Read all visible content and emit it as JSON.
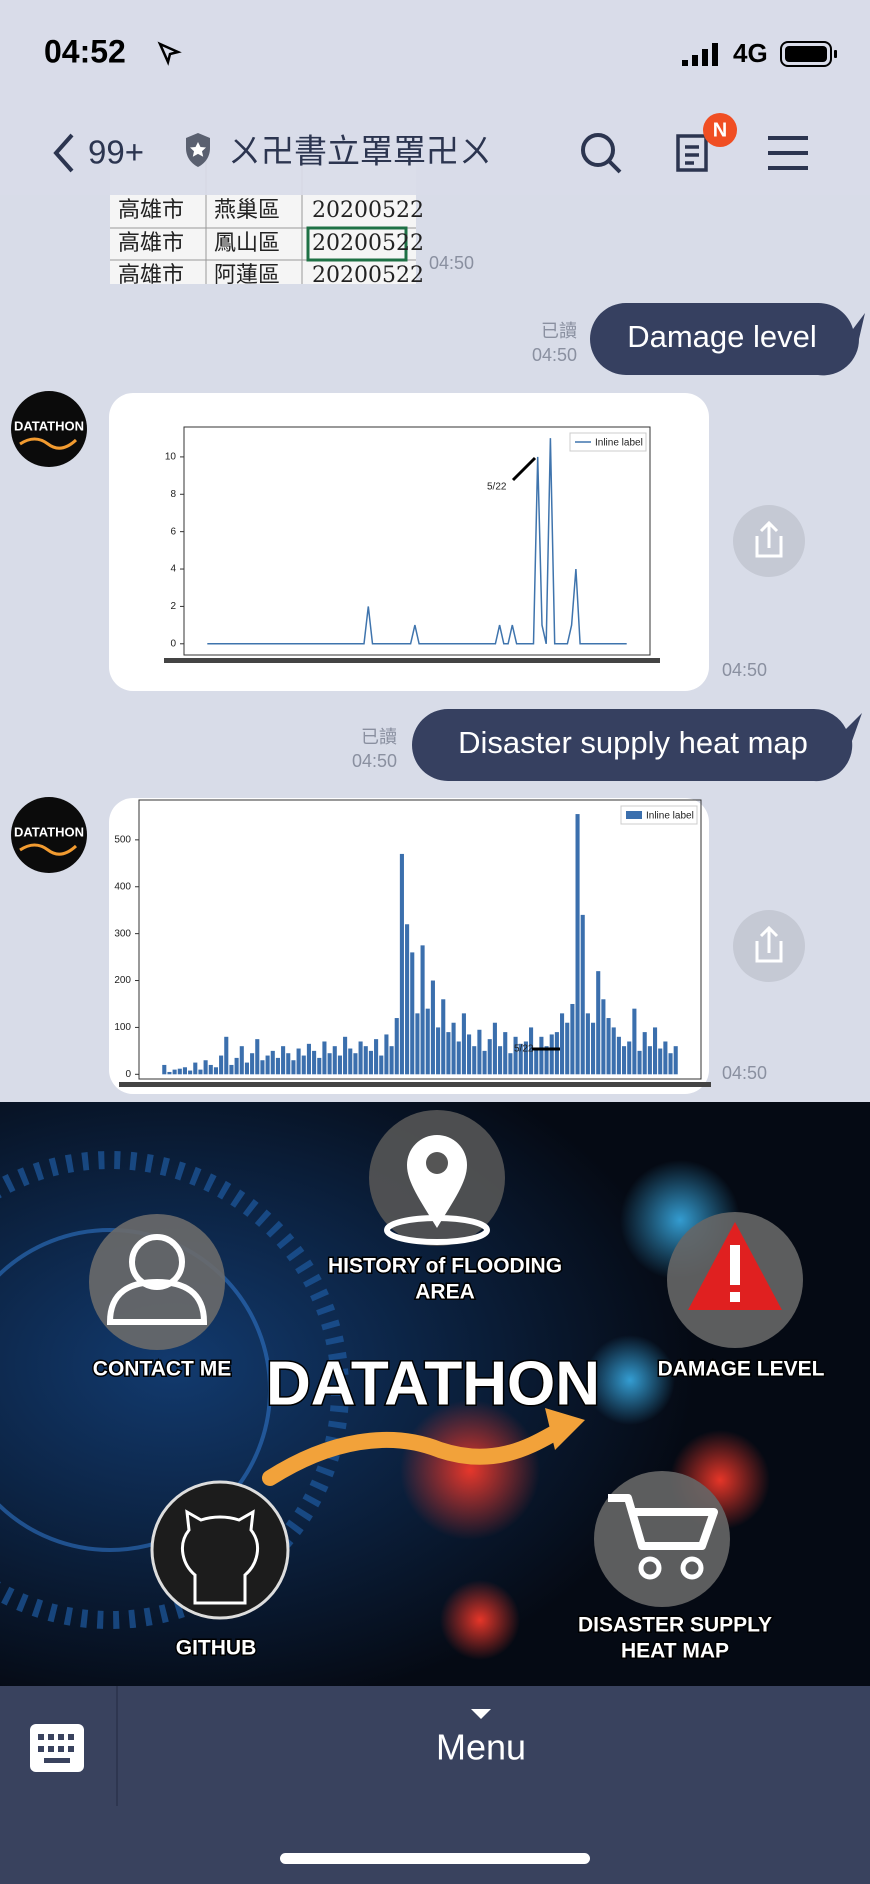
{
  "status_bar": {
    "time": "04:52",
    "network": "4G"
  },
  "header": {
    "back_count": "99+",
    "title": "ㄨ卍書立罩罩卍ㄨ",
    "badge": "N"
  },
  "image_message": {
    "table": [
      [
        "高雄市",
        "燕巢區",
        "20200522"
      ],
      [
        "高雄市",
        "鳳山區",
        "20200522"
      ],
      [
        "高雄市",
        "阿蓮區",
        "20200522"
      ]
    ],
    "time": "04:50"
  },
  "sent_messages": [
    {
      "text": "Damage level",
      "read": "已讀",
      "time": "04:50"
    },
    {
      "text": "Disaster supply heat map",
      "read": "已讀",
      "time": "04:50"
    }
  ],
  "chart_messages": [
    {
      "avatar": "DATATHON",
      "time": "04:50",
      "chart_data": {
        "type": "line",
        "annotation": "5/22",
        "legend": "upper right",
        "series": [
          {
            "name": "Inline label",
            "color": "#3f74ad",
            "values": [
              0,
              0,
              0,
              0,
              0,
              0,
              0,
              0,
              0,
              0,
              0,
              0,
              0,
              0,
              0,
              0,
              0,
              0,
              0,
              0,
              0,
              0,
              0,
              0,
              0,
              0,
              0,
              0,
              0,
              0,
              0,
              0,
              0,
              0,
              0,
              0,
              0,
              0,
              2,
              0,
              0,
              0,
              0,
              0,
              0,
              0,
              0,
              0,
              0,
              1,
              0,
              0,
              0,
              0,
              0,
              0,
              0,
              0,
              0,
              0,
              0,
              0,
              0,
              0,
              0,
              0,
              0,
              0,
              0,
              1,
              0,
              0,
              1,
              0,
              0,
              0,
              0,
              0,
              10,
              1,
              0,
              11,
              0,
              0,
              0,
              0,
              1,
              4,
              0,
              0,
              0,
              0,
              0,
              0,
              0,
              0,
              0,
              0,
              0,
              0
            ]
          }
        ],
        "ylim": [
          -0.6,
          11.6
        ],
        "yticks": [
          0,
          2,
          4,
          6,
          8,
          10
        ]
      }
    },
    {
      "avatar": "DATATHON",
      "time": "04:50",
      "chart_data": {
        "type": "bar",
        "annotation": "5/22",
        "legend": "upper right",
        "series": [
          {
            "name": "Inline label",
            "color": "#3b6fad",
            "values": [
              20,
              5,
              10,
              12,
              15,
              8,
              25,
              10,
              30,
              20,
              15,
              40,
              80,
              20,
              35,
              60,
              25,
              45,
              75,
              30,
              40,
              50,
              35,
              60,
              45,
              30,
              55,
              40,
              65,
              50,
              35,
              70,
              45,
              60,
              40,
              80,
              55,
              45,
              70,
              60,
              50,
              75,
              40,
              85,
              60,
              120,
              470,
              320,
              260,
              130,
              275,
              140,
              200,
              100,
              160,
              90,
              110,
              70,
              130,
              85,
              60,
              95,
              50,
              75,
              110,
              60,
              90,
              45,
              80,
              65,
              70,
              100,
              55,
              80,
              60,
              85,
              90,
              130,
              110,
              150,
              555,
              340,
              130,
              110,
              220,
              160,
              120,
              100,
              80,
              60,
              70,
              140,
              50,
              90,
              60,
              100,
              55,
              70,
              45,
              60
            ]
          }
        ],
        "ylim": [
          -10,
          585
        ],
        "yticks": [
          0,
          100,
          200,
          300,
          400,
          500
        ]
      }
    }
  ],
  "rich_menu": {
    "logo": "DATATHON",
    "items": [
      {
        "label": [
          "HISTORY of FLOODING",
          "AREA"
        ]
      },
      {
        "label": [
          "CONTACT ME"
        ]
      },
      {
        "label": [
          "DAMAGE LEVEL"
        ]
      },
      {
        "label": [
          "GITHUB"
        ]
      },
      {
        "label": [
          "DISASTER SUPPLY",
          "HEAT MAP"
        ]
      }
    ]
  },
  "footer": {
    "menu": "Menu"
  }
}
